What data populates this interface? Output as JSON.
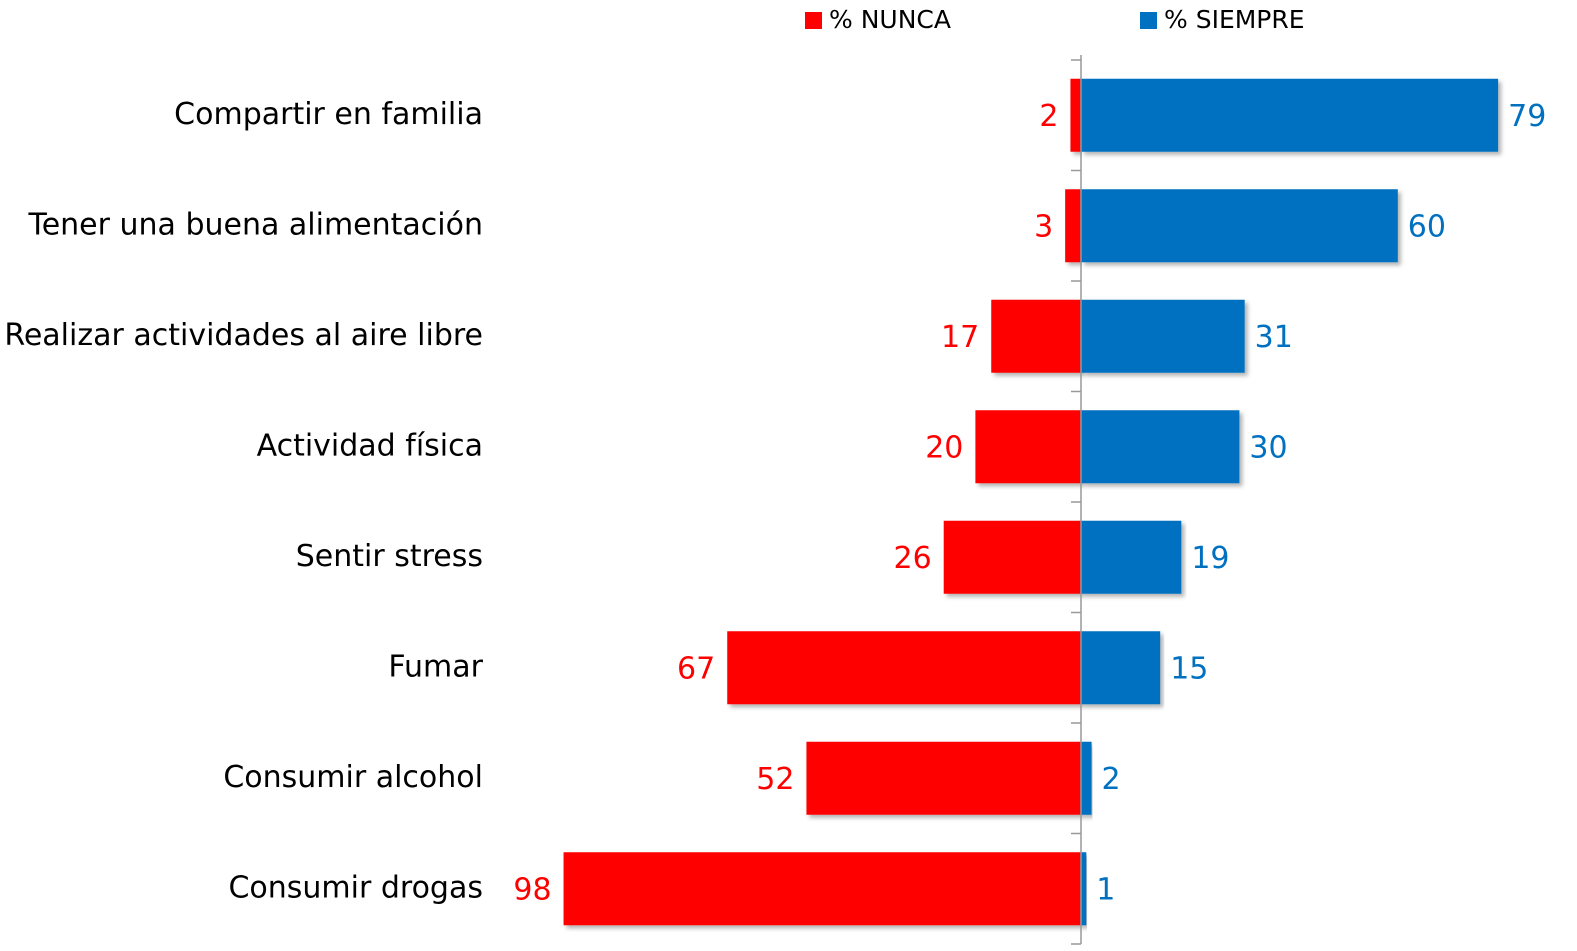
{
  "chart_data": {
    "type": "diverging-bar",
    "categories": [
      "Compartir en familia",
      "Tener una buena alimentación",
      "Realizar actividades al aire libre",
      "Actividad física",
      "Sentir stress",
      "Fumar",
      "Consumir alcohol",
      "Consumir drogas"
    ],
    "series": [
      {
        "name": "% NUNCA",
        "color": "#ff0000",
        "values": [
          2,
          3,
          17,
          20,
          26,
          67,
          52,
          98
        ]
      },
      {
        "name": "% SIEMPRE",
        "color": "#0070c0",
        "values": [
          79,
          60,
          31,
          30,
          19,
          15,
          2,
          1
        ]
      }
    ],
    "legend": "top"
  }
}
